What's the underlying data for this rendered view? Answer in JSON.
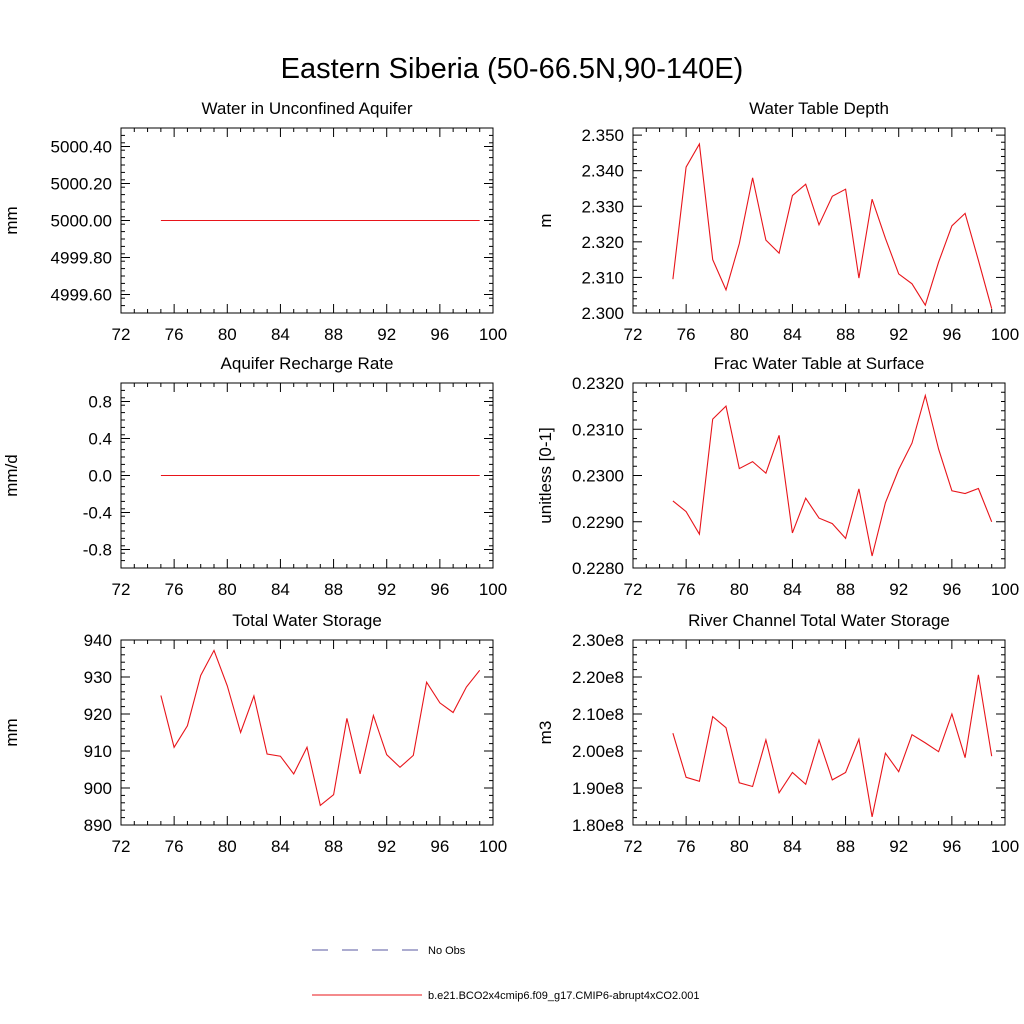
{
  "figure": {
    "title": "Eastern Siberia (50-66.5N,90-140E)"
  },
  "legend": {
    "entries": [
      {
        "label": "No Obs",
        "color": "#5a5aa0",
        "style": "dashed"
      },
      {
        "label": "b.e21.BCO2x4cmip6.f09_g17.CMIP6-abrupt4xCO2.001",
        "color": "#e8141a",
        "style": "solid"
      }
    ]
  },
  "chart_data": [
    {
      "type": "line",
      "title": "Water in Unconfined Aquifer",
      "ylabel": "mm",
      "xlim": [
        72,
        100
      ],
      "ylim": [
        4999.5,
        5000.5
      ],
      "xticks": [
        72,
        76,
        80,
        84,
        88,
        92,
        96,
        100
      ],
      "yticks": [
        4999.6,
        4999.8,
        5000.0,
        5000.2,
        5000.4
      ],
      "ytick_labels": [
        "4999.60",
        "4999.80",
        "5000.00",
        "5000.20",
        "5000.40"
      ],
      "x": [
        75,
        99
      ],
      "series": [
        {
          "color": "#e8141a",
          "values": [
            5000.0,
            5000.0
          ]
        }
      ]
    },
    {
      "type": "line",
      "title": "Water Table Depth",
      "ylabel": "m",
      "xlim": [
        72,
        100
      ],
      "ylim": [
        2.3,
        2.352
      ],
      "xticks": [
        72,
        76,
        80,
        84,
        88,
        92,
        96,
        100
      ],
      "yticks": [
        2.3,
        2.31,
        2.32,
        2.33,
        2.34,
        2.35
      ],
      "ytick_labels": [
        "2.300",
        "2.310",
        "2.320",
        "2.330",
        "2.340",
        "2.350"
      ],
      "x": [
        75,
        76,
        77,
        78,
        79,
        80,
        81,
        82,
        83,
        84,
        85,
        86,
        87,
        88,
        89,
        90,
        91,
        92,
        93,
        94,
        95,
        96,
        97,
        98,
        99
      ],
      "series": [
        {
          "color": "#e8141a",
          "values": [
            2.3095,
            2.341,
            2.3475,
            2.315,
            2.3065,
            2.3195,
            2.338,
            2.3205,
            2.3168,
            2.333,
            2.3362,
            2.3248,
            2.3328,
            2.3348,
            2.3098,
            2.332,
            2.321,
            2.311,
            2.3082,
            2.3022,
            2.3143,
            2.3245,
            2.328,
            2.3148,
            2.3012
          ]
        }
      ]
    },
    {
      "type": "line",
      "title": "Aquifer Recharge Rate",
      "ylabel": "mm/d",
      "xlim": [
        72,
        100
      ],
      "ylim": [
        -1.0,
        1.0
      ],
      "xticks": [
        72,
        76,
        80,
        84,
        88,
        92,
        96,
        100
      ],
      "yticks": [
        -0.8,
        -0.4,
        0.0,
        0.4,
        0.8
      ],
      "ytick_labels": [
        "-0.8",
        "-0.4",
        "0.0",
        "0.4",
        "0.8"
      ],
      "x": [
        75,
        99
      ],
      "series": [
        {
          "color": "#e8141a",
          "values": [
            0.0,
            0.0
          ]
        }
      ]
    },
    {
      "type": "line",
      "title": "Frac Water Table at Surface",
      "ylabel": "unitless [0-1]",
      "xlim": [
        72,
        100
      ],
      "ylim": [
        0.228,
        0.232
      ],
      "xticks": [
        72,
        76,
        80,
        84,
        88,
        92,
        96,
        100
      ],
      "yticks": [
        0.228,
        0.229,
        0.23,
        0.231,
        0.232
      ],
      "ytick_labels": [
        "0.2280",
        "0.2290",
        "0.2300",
        "0.2310",
        "0.2320"
      ],
      "x": [
        75,
        76,
        77,
        78,
        79,
        80,
        81,
        82,
        83,
        84,
        85,
        86,
        87,
        88,
        89,
        90,
        91,
        92,
        93,
        94,
        95,
        96,
        97,
        98,
        99
      ],
      "series": [
        {
          "color": "#e8141a",
          "values": [
            0.22945,
            0.22922,
            0.22873,
            0.23122,
            0.2315,
            0.23015,
            0.2303,
            0.23005,
            0.23087,
            0.22876,
            0.22951,
            0.22908,
            0.22896,
            0.22864,
            0.22971,
            0.22826,
            0.22941,
            0.23013,
            0.2307,
            0.23173,
            0.23057,
            0.22967,
            0.22961,
            0.22972,
            0.229
          ]
        }
      ]
    },
    {
      "type": "line",
      "title": "Total Water Storage",
      "ylabel": "mm",
      "xlim": [
        72,
        100
      ],
      "ylim": [
        890,
        940
      ],
      "xticks": [
        72,
        76,
        80,
        84,
        88,
        92,
        96,
        100
      ],
      "yticks": [
        890,
        900,
        910,
        920,
        930,
        940
      ],
      "ytick_labels": [
        "890",
        "900",
        "910",
        "920",
        "930",
        "940"
      ],
      "x": [
        75,
        76,
        77,
        78,
        79,
        80,
        81,
        82,
        83,
        84,
        85,
        86,
        87,
        88,
        89,
        90,
        91,
        92,
        93,
        94,
        95,
        96,
        97,
        98,
        99
      ],
      "series": [
        {
          "color": "#e8141a",
          "values": [
            925.0,
            911.0,
            916.8,
            930.4,
            937.2,
            927.6,
            915.0,
            924.9,
            909.2,
            908.6,
            903.8,
            911.0,
            895.3,
            898.2,
            918.8,
            903.8,
            919.6,
            909.0,
            905.6,
            908.8,
            928.6,
            923.0,
            920.4,
            927.3,
            931.8
          ]
        }
      ]
    },
    {
      "type": "line",
      "title": "River Channel Total Water Storage",
      "ylabel": "m3",
      "xlim": [
        72,
        100
      ],
      "ylim": [
        180000000,
        230000000
      ],
      "xticks": [
        72,
        76,
        80,
        84,
        88,
        92,
        96,
        100
      ],
      "yticks": [
        180000000,
        190000000,
        200000000,
        210000000,
        220000000,
        230000000
      ],
      "ytick_labels": [
        "1.80e8",
        "1.90e8",
        "2.00e8",
        "2.10e8",
        "2.20e8",
        "2.30e8"
      ],
      "x": [
        75,
        76,
        77,
        78,
        79,
        80,
        81,
        82,
        83,
        84,
        85,
        86,
        87,
        88,
        89,
        90,
        91,
        92,
        93,
        94,
        95,
        96,
        97,
        98,
        99
      ],
      "series": [
        {
          "color": "#e8141a",
          "values": [
            204800000,
            192900000,
            191800000,
            209300000,
            206300000,
            191400000,
            190400000,
            203000000,
            188700000,
            194200000,
            191000000,
            203000000,
            192200000,
            194200000,
            203200000,
            182200000,
            199400000,
            194400000,
            204400000,
            202200000,
            199800000,
            210000000,
            198200000,
            220600000,
            198600000
          ]
        }
      ]
    }
  ]
}
